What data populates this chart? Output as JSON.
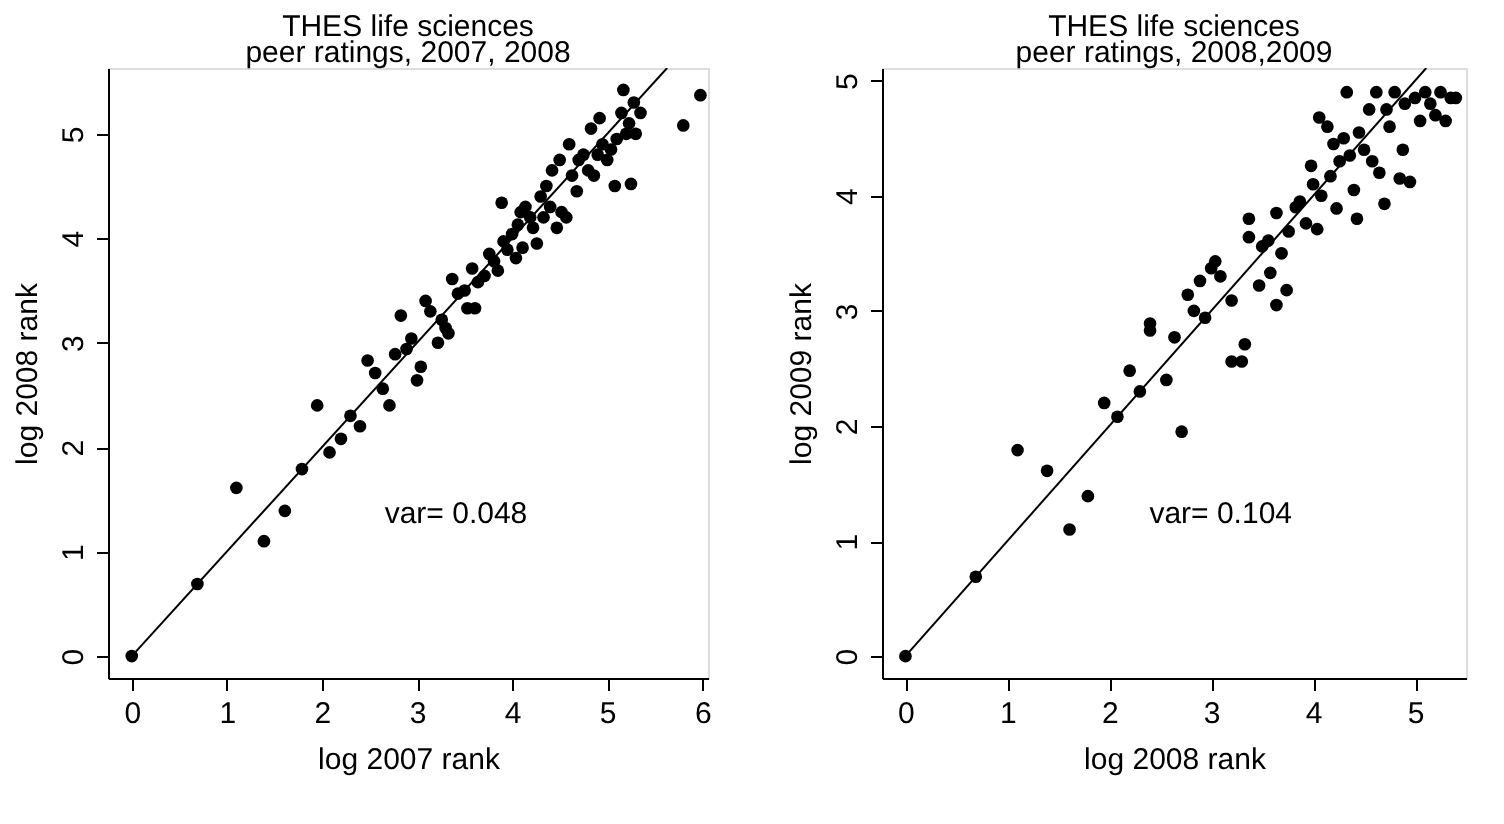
{
  "chart_data": [
    {
      "type": "scatter",
      "title": "THES life sciences",
      "subtitle": "peer ratings, 2007, 2008",
      "xlabel": "log 2007 rank",
      "ylabel": "log 2008 rank",
      "xlim": [
        -0.25,
        6.06
      ],
      "ylim": [
        -0.21,
        5.63
      ],
      "xticks": [
        0,
        1,
        2,
        3,
        4,
        5,
        6
      ],
      "yticks": [
        0,
        1,
        2,
        3,
        4,
        5
      ],
      "marker": "circle",
      "annotations": [
        "var= 0.048"
      ],
      "series": [
        {
          "color": "#000000",
          "x": [
            0,
            0.69,
            1.1,
            1.39,
            1.61,
            1.79,
            1.95,
            2.08,
            2.2,
            2.3,
            2.4,
            2.48,
            2.56,
            2.64,
            2.71,
            2.77,
            2.83,
            2.89,
            2.94,
            3.0,
            3.04,
            3.09,
            3.14,
            3.22,
            3.26,
            3.3,
            3.33,
            3.37,
            3.43,
            3.5,
            3.53,
            3.58,
            3.61,
            3.64,
            3.71,
            3.76,
            3.81,
            3.85,
            3.89,
            3.91,
            3.95,
            4.0,
            4.04,
            4.06,
            4.09,
            4.11,
            4.14,
            4.19,
            4.22,
            4.26,
            4.3,
            4.33,
            4.36,
            4.4,
            4.42,
            4.47,
            4.5,
            4.52,
            4.57,
            4.6,
            4.63,
            4.68,
            4.7,
            4.75,
            4.8,
            4.83,
            4.86,
            4.9,
            4.92,
            4.95,
            5.0,
            5.04,
            5.08,
            5.1,
            5.15,
            5.17,
            5.2,
            5.23,
            5.25,
            5.28,
            5.3,
            5.35,
            5.8,
            5.98
          ],
          "values": [
            0,
            0.69,
            1.61,
            1.1,
            1.39,
            1.79,
            2.4,
            1.95,
            2.08,
            2.3,
            2.2,
            2.83,
            2.71,
            2.56,
            2.4,
            2.89,
            3.26,
            2.94,
            3.04,
            2.64,
            2.77,
            3.4,
            3.3,
            3.0,
            3.22,
            3.14,
            3.09,
            3.61,
            3.47,
            3.5,
            3.33,
            3.71,
            3.33,
            3.58,
            3.64,
            3.85,
            3.78,
            3.69,
            4.34,
            3.97,
            3.89,
            4.04,
            3.81,
            4.13,
            4.25,
            3.91,
            4.3,
            4.2,
            4.1,
            3.95,
            4.4,
            4.2,
            4.5,
            4.3,
            4.65,
            4.1,
            4.75,
            4.25,
            4.2,
            4.9,
            4.6,
            4.45,
            4.75,
            4.8,
            4.65,
            5.05,
            4.6,
            4.8,
            5.15,
            4.9,
            4.75,
            4.85,
            4.5,
            4.95,
            5.2,
            5.42,
            5.0,
            5.1,
            4.52,
            5.3,
            5.0,
            5.2,
            5.08,
            5.37
          ]
        },
        {
          "type": "line",
          "color": "#000000",
          "line_style": "solid",
          "marker": "none",
          "x": [
            0,
            5.63
          ],
          "values": [
            0,
            5.63
          ]
        }
      ]
    },
    {
      "type": "scatter",
      "title": "THES life sciences",
      "subtitle": "peer ratings, 2008,2009",
      "xlabel": "log 2008 rank",
      "ylabel": "log 2009 rank",
      "xlim": [
        -0.23,
        5.5
      ],
      "ylim": [
        -0.19,
        5.11
      ],
      "xticks": [
        0,
        1,
        2,
        3,
        4,
        5
      ],
      "yticks": [
        0,
        1,
        2,
        3,
        4,
        5
      ],
      "marker": "circle",
      "annotations": [
        "var= 0.104"
      ],
      "series": [
        {
          "color": "#000000",
          "x": [
            0,
            0.69,
            1.1,
            1.39,
            1.61,
            1.79,
            1.95,
            2.08,
            2.2,
            2.3,
            2.4,
            2.4,
            2.56,
            2.64,
            2.71,
            2.77,
            2.83,
            2.89,
            2.94,
            3.0,
            3.04,
            3.09,
            3.2,
            3.2,
            3.3,
            3.33,
            3.37,
            3.37,
            3.47,
            3.5,
            3.56,
            3.58,
            3.64,
            3.64,
            3.69,
            3.74,
            3.76,
            3.83,
            3.87,
            3.93,
            3.98,
            4.0,
            4.04,
            4.06,
            4.08,
            4.14,
            4.17,
            4.2,
            4.23,
            4.26,
            4.3,
            4.33,
            4.36,
            4.4,
            4.43,
            4.45,
            4.5,
            4.55,
            4.58,
            4.62,
            4.65,
            4.7,
            4.72,
            4.75,
            4.8,
            4.85,
            4.88,
            4.9,
            4.95,
            5.0,
            5.05,
            5.1,
            5.15,
            5.2,
            5.25,
            5.3,
            5.35,
            5.4
          ],
          "values": [
            0,
            0.69,
            1.79,
            1.61,
            1.1,
            1.39,
            2.2,
            2.08,
            2.48,
            2.3,
            2.83,
            2.89,
            2.4,
            2.77,
            1.95,
            3.14,
            3.0,
            3.26,
            2.94,
            3.37,
            3.43,
            3.3,
            3.09,
            2.56,
            2.56,
            2.71,
            3.8,
            3.64,
            3.22,
            3.56,
            3.61,
            3.33,
            3.05,
            3.85,
            3.5,
            3.18,
            3.69,
            3.9,
            3.95,
            3.76,
            4.26,
            4.1,
            3.71,
            4.68,
            4.0,
            4.6,
            4.17,
            4.45,
            3.89,
            4.3,
            4.5,
            4.9,
            4.35,
            4.05,
            3.8,
            4.55,
            4.4,
            4.75,
            4.3,
            4.9,
            4.2,
            3.93,
            4.75,
            4.6,
            4.9,
            4.15,
            4.4,
            4.8,
            4.12,
            4.85,
            4.65,
            4.9,
            4.8,
            4.7,
            4.9,
            4.65,
            4.85,
            4.85
          ]
        },
        {
          "type": "line",
          "color": "#000000",
          "line_style": "solid",
          "marker": "none",
          "x": [
            0,
            5.11
          ],
          "values": [
            0,
            5.11
          ]
        }
      ]
    }
  ]
}
